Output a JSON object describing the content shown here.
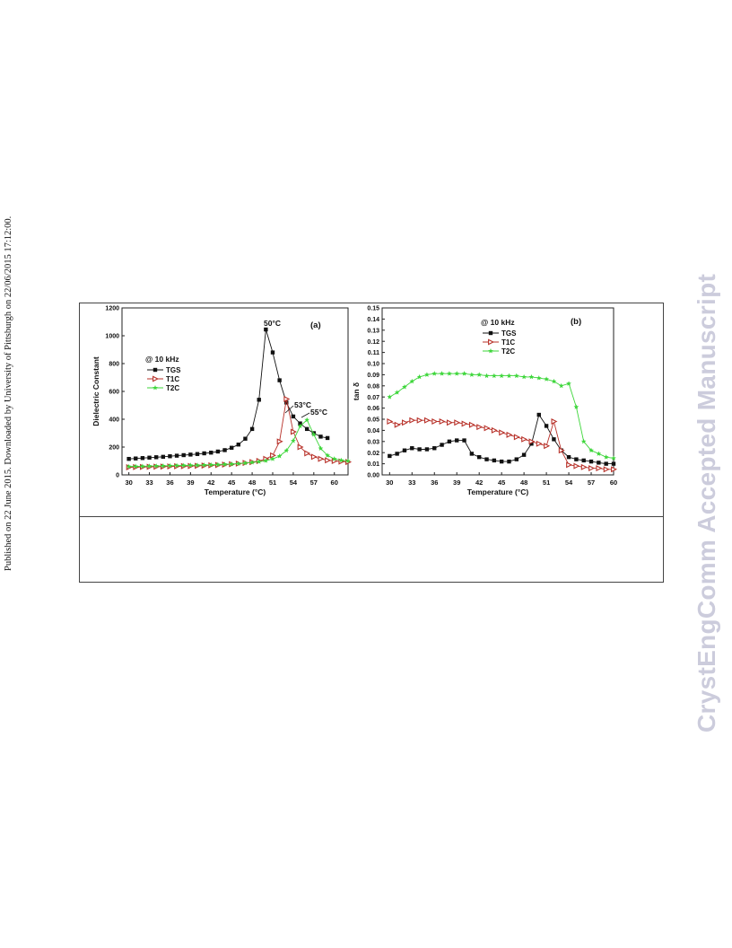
{
  "side_note": "Published on 22 June 2015. Downloaded by University of Pittsburgh on 22/06/2015 17:12:00.",
  "watermark": "CrystEngComm Accepted Manuscript",
  "chart_data": [
    {
      "type": "line",
      "panel_label": "(a)",
      "xlabel": "Temperature (°C)",
      "ylabel": "Dielectric Constant",
      "xlim": [
        29,
        62
      ],
      "ylim": [
        0,
        1200
      ],
      "xticks": [
        30,
        33,
        36,
        39,
        42,
        45,
        48,
        51,
        54,
        57,
        60
      ],
      "yticks": [
        0,
        200,
        400,
        600,
        800,
        1000,
        1200
      ],
      "legend_title": "@ 10 kHz",
      "legend_position": "upper-left",
      "annotations": [
        "50°C",
        "53°C",
        "55°C"
      ],
      "series": [
        {
          "name": "TGS",
          "color": "#111111",
          "marker": "square",
          "x": [
            30,
            31,
            32,
            33,
            34,
            35,
            36,
            37,
            38,
            39,
            40,
            41,
            42,
            43,
            44,
            45,
            46,
            47,
            48,
            49,
            50,
            51,
            52,
            53,
            54,
            55,
            56,
            57,
            58,
            59
          ],
          "y": [
            115,
            118,
            121,
            124,
            127,
            130,
            134,
            138,
            142,
            146,
            150,
            155,
            160,
            168,
            178,
            195,
            218,
            260,
            330,
            540,
            1045,
            880,
            680,
            520,
            420,
            370,
            330,
            300,
            275,
            265
          ]
        },
        {
          "name": "T1C",
          "color": "#b8322a",
          "marker": "triangle-right",
          "x": [
            30,
            31,
            32,
            33,
            34,
            35,
            36,
            37,
            38,
            39,
            40,
            41,
            42,
            43,
            44,
            45,
            46,
            47,
            48,
            49,
            50,
            51,
            52,
            53,
            54,
            55,
            56,
            57,
            58,
            59,
            60,
            61,
            62
          ],
          "y": [
            55,
            56,
            57,
            58,
            59,
            60,
            61,
            62,
            63,
            64,
            65,
            67,
            69,
            71,
            74,
            77,
            81,
            86,
            92,
            100,
            115,
            140,
            240,
            545,
            310,
            200,
            155,
            130,
            115,
            105,
            100,
            96,
            93
          ]
        },
        {
          "name": "T2C",
          "color": "#3dd63a",
          "marker": "star",
          "x": [
            30,
            31,
            32,
            33,
            34,
            35,
            36,
            37,
            38,
            39,
            40,
            41,
            42,
            43,
            44,
            45,
            46,
            47,
            48,
            49,
            50,
            51,
            52,
            53,
            54,
            55,
            56,
            57,
            58,
            59,
            60,
            61,
            62
          ],
          "y": [
            60,
            61,
            62,
            63,
            64,
            65,
            66,
            67,
            68,
            69,
            70,
            71,
            72,
            74,
            76,
            78,
            81,
            85,
            90,
            95,
            102,
            115,
            135,
            175,
            245,
            350,
            395,
            290,
            190,
            140,
            115,
            105,
            100
          ]
        }
      ]
    },
    {
      "type": "line",
      "panel_label": "(b)",
      "xlabel": "Temperature (°C)",
      "ylabel": "tan δ",
      "xlim": [
        29,
        60
      ],
      "ylim": [
        0,
        0.15
      ],
      "xticks": [
        30,
        33,
        36,
        39,
        42,
        45,
        48,
        51,
        54,
        57,
        60
      ],
      "yticks": [
        0.0,
        0.01,
        0.02,
        0.03,
        0.04,
        0.05,
        0.06,
        0.07,
        0.08,
        0.09,
        0.1,
        0.11,
        0.12,
        0.13,
        0.14,
        0.15
      ],
      "legend_title": "@ 10 kHz",
      "legend_position": "upper-center",
      "series": [
        {
          "name": "TGS",
          "color": "#111111",
          "marker": "square",
          "x": [
            30,
            31,
            32,
            33,
            34,
            35,
            36,
            37,
            38,
            39,
            40,
            41,
            42,
            43,
            44,
            45,
            46,
            47,
            48,
            49,
            50,
            51,
            52,
            53,
            54,
            55,
            56,
            57,
            58,
            59,
            60
          ],
          "y": [
            0.017,
            0.019,
            0.022,
            0.024,
            0.023,
            0.023,
            0.024,
            0.027,
            0.03,
            0.031,
            0.031,
            0.019,
            0.016,
            0.014,
            0.013,
            0.012,
            0.012,
            0.014,
            0.018,
            0.028,
            0.054,
            0.044,
            0.032,
            0.022,
            0.016,
            0.014,
            0.013,
            0.012,
            0.011,
            0.01,
            0.01
          ]
        },
        {
          "name": "T1C",
          "color": "#b8322a",
          "marker": "triangle-right",
          "x": [
            30,
            31,
            32,
            33,
            34,
            35,
            36,
            37,
            38,
            39,
            40,
            41,
            42,
            43,
            44,
            45,
            46,
            47,
            48,
            49,
            50,
            51,
            52,
            53,
            54,
            55,
            56,
            57,
            58,
            59,
            60
          ],
          "y": [
            0.048,
            0.045,
            0.047,
            0.049,
            0.049,
            0.049,
            0.048,
            0.048,
            0.047,
            0.047,
            0.046,
            0.045,
            0.043,
            0.042,
            0.04,
            0.038,
            0.036,
            0.034,
            0.032,
            0.03,
            0.028,
            0.026,
            0.048,
            0.022,
            0.009,
            0.008,
            0.007,
            0.006,
            0.006,
            0.005,
            0.005
          ]
        },
        {
          "name": "T2C",
          "color": "#3dd63a",
          "marker": "star",
          "x": [
            30,
            31,
            32,
            33,
            34,
            35,
            36,
            37,
            38,
            39,
            40,
            41,
            42,
            43,
            44,
            45,
            46,
            47,
            48,
            49,
            50,
            51,
            52,
            53,
            54,
            55,
            56,
            57,
            58,
            59,
            60
          ],
          "y": [
            0.07,
            0.074,
            0.079,
            0.084,
            0.088,
            0.09,
            0.091,
            0.091,
            0.091,
            0.091,
            0.091,
            0.09,
            0.09,
            0.089,
            0.089,
            0.089,
            0.089,
            0.089,
            0.088,
            0.088,
            0.087,
            0.086,
            0.084,
            0.08,
            0.082,
            0.061,
            0.03,
            0.022,
            0.019,
            0.016,
            0.015
          ]
        }
      ]
    }
  ]
}
